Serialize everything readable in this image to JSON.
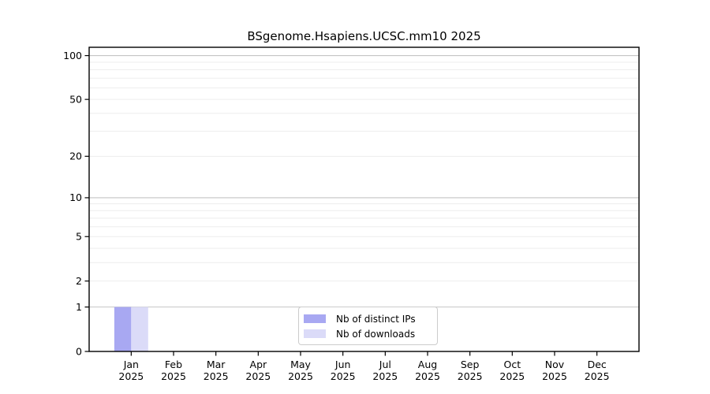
{
  "chart_data": {
    "type": "bar",
    "title": "BSgenome.Hsapiens.UCSC.mm10 2025",
    "months": [
      "Jan",
      "Feb",
      "Mar",
      "Apr",
      "May",
      "Jun",
      "Jul",
      "Aug",
      "Sep",
      "Oct",
      "Nov",
      "Dec"
    ],
    "year_label": "2025",
    "series": [
      {
        "name": "Nb of distinct IPs",
        "color": "#a8a8f2",
        "values": [
          1,
          0,
          0,
          0,
          0,
          0,
          0,
          0,
          0,
          0,
          0,
          0
        ]
      },
      {
        "name": "Nb of downloads",
        "color": "#dbdbf8",
        "values": [
          1,
          0,
          0,
          0,
          0,
          0,
          0,
          0,
          0,
          0,
          0,
          0
        ]
      }
    ],
    "y_axis": {
      "scale": "log1p",
      "ticks": [
        0,
        1,
        2,
        5,
        10,
        20,
        50,
        100
      ],
      "max": 114,
      "major_gridlines": [
        1,
        10,
        100
      ],
      "minor_gridlines": [
        2,
        3,
        4,
        5,
        6,
        7,
        8,
        9,
        20,
        30,
        40,
        50,
        60,
        70,
        80,
        90
      ]
    },
    "legend": {
      "position": "bottom-center",
      "entries": [
        "Nb of distinct IPs",
        "Nb of downloads"
      ]
    },
    "colors": {
      "major_grid": "#c4c4c4",
      "minor_grid": "#ededed",
      "axis": "#000000",
      "background": "#ffffff"
    }
  }
}
